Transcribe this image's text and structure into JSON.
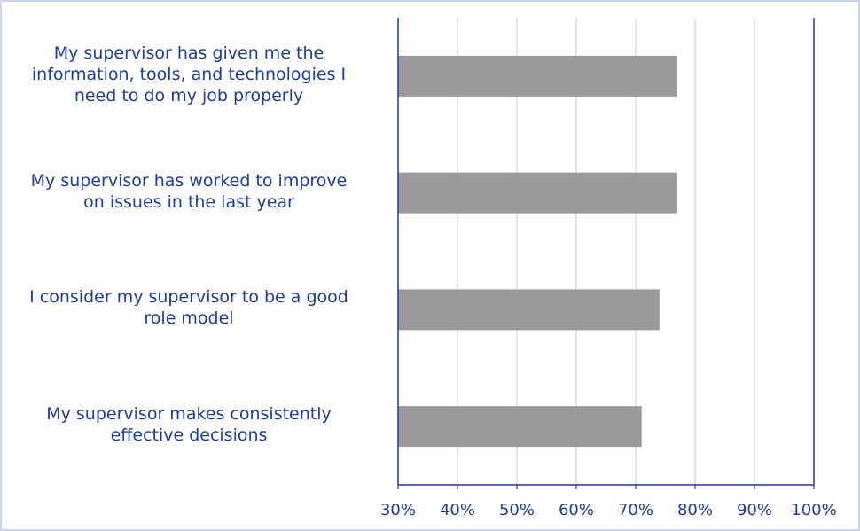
{
  "chart_data": {
    "type": "bar",
    "orientation": "horizontal",
    "categories": [
      "My supervisor has given me the information, tools, and technologies I need to do my job properly",
      "My supervisor has worked to improve on issues in the last year",
      "I consider my supervisor to be a good role model",
      "My supervisor makes consistently effective decisions"
    ],
    "category_lines": [
      [
        "My supervisor has given me the",
        "information, tools, and technologies I",
        "need to do my job properly"
      ],
      [
        "My supervisor has worked to improve",
        "on issues in the last year"
      ],
      [
        "I consider my supervisor to be a good",
        "role model"
      ],
      [
        "My supervisor makes consistently",
        "effective decisions"
      ]
    ],
    "values": [
      77,
      77,
      74,
      71
    ],
    "xlim": [
      30,
      100
    ],
    "x_ticks": [
      "30%",
      "40%",
      "50%",
      "60%",
      "70%",
      "80%",
      "90%",
      "100%"
    ],
    "x_tick_values": [
      30,
      40,
      50,
      60,
      70,
      80,
      90,
      100
    ],
    "grid": true,
    "legend": "none",
    "title": "",
    "xlabel": "",
    "ylabel": ""
  },
  "colors": {
    "bar": "#999a9c",
    "text": "#1a3c9c",
    "axis": "#1a3c9c",
    "grid": "#c9d5ea",
    "frame": "#c9d5ea"
  }
}
